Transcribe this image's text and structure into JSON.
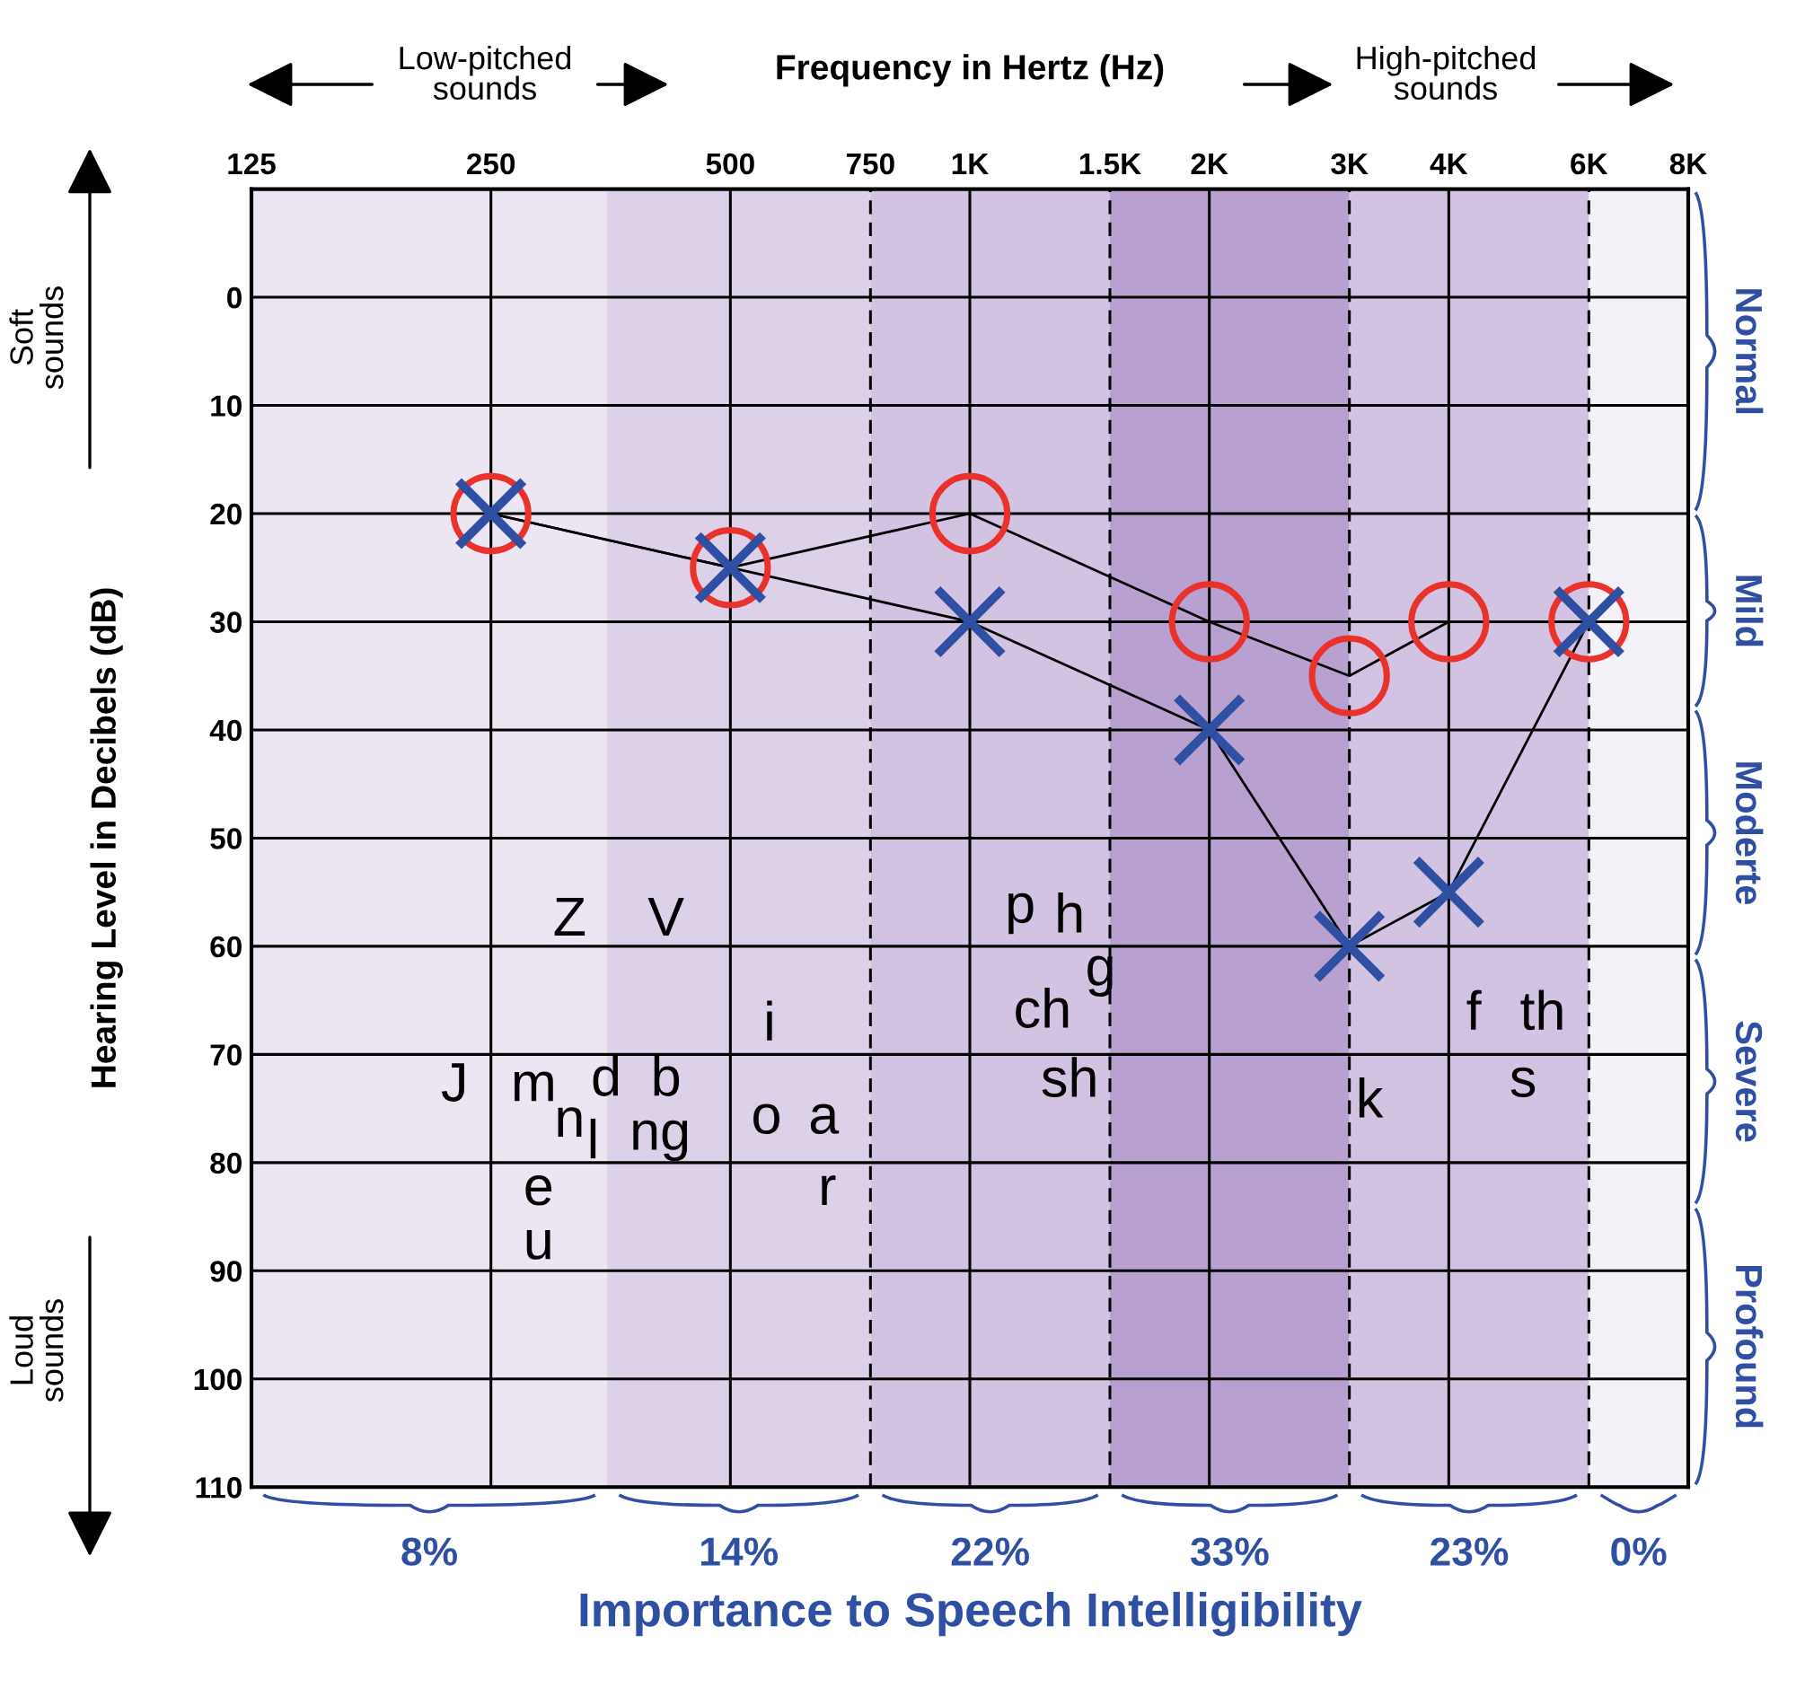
{
  "chart_data": {
    "type": "line",
    "title": "Frequency in Hertz (Hz)",
    "xlabel": "Importance to Speech Intelligibility",
    "ylabel": "Hearing Level in Decibels (dB)",
    "x": [
      250,
      500,
      1000,
      2000,
      3000,
      4000,
      6000
    ],
    "series": [
      {
        "color": "#e8322b",
        "marker": "circle",
        "values": [
          20,
          25,
          20,
          30,
          35,
          30,
          30
        ]
      },
      {
        "color": "#2f4fa3",
        "marker": "cross",
        "values": [
          20,
          25,
          30,
          40,
          60,
          55,
          30
        ]
      }
    ],
    "log": "x",
    "xlim": [
      125,
      8000
    ],
    "xticks": [
      125,
      250,
      500,
      750,
      {
        "value": 1000,
        "label": "1K"
      },
      {
        "value": 1500,
        "label": "1.5K"
      },
      {
        "value": 2000,
        "label": "2K"
      },
      {
        "value": 3000,
        "label": "3K"
      },
      {
        "value": 4000,
        "label": "4K"
      },
      {
        "value": 6000,
        "label": "6K"
      },
      {
        "value": 8000,
        "label": "8K"
      }
    ],
    "ylim": [
      110,
      -10
    ],
    "yticks": [
      0,
      10,
      20,
      30,
      40,
      50,
      60,
      70,
      80,
      90,
      100,
      110
    ],
    "grid": true,
    "line_style": "solid",
    "bands": [
      {
        "axis": "x",
        "from": 125,
        "to": 350,
        "label": "8%",
        "color": "#ece5f2"
      },
      {
        "axis": "x",
        "from": 350,
        "to": 750,
        "label": "14%",
        "color": "#ddd1e9"
      },
      {
        "axis": "x",
        "from": 750,
        "to": 1500,
        "label": "22%",
        "color": "#d2c3e2"
      },
      {
        "axis": "x",
        "from": 1500,
        "to": 3000,
        "label": "33%",
        "color": "#b8a0d1"
      },
      {
        "axis": "x",
        "from": 3000,
        "to": 6000,
        "label": "23%",
        "color": "#d2c3e2"
      },
      {
        "axis": "x",
        "from": 6000,
        "to": 8000,
        "label": "0%",
        "color": "#f5f1f8"
      }
    ],
    "annotations": [
      "Low-pitched sounds",
      "High-pitched sounds",
      "Soft sounds",
      "Loud sounds",
      "Normal",
      "Mild",
      "Moderte",
      "Severe",
      "Profound",
      "Z",
      "V",
      "J",
      "m",
      "d",
      "b",
      "n",
      "ng",
      "e",
      "l",
      "u",
      "i",
      "o",
      "a",
      "r",
      "p",
      "h",
      "g",
      "ch",
      "sh",
      "k",
      "f",
      "th",
      "s"
    ]
  }
}
